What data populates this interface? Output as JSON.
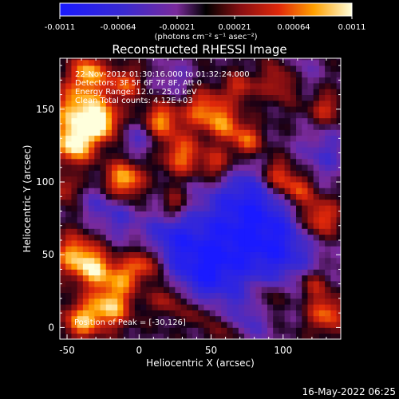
{
  "chart_data": {
    "type": "heatmap",
    "title": "Reconstructed RHESSI Image",
    "xlabel": "Heliocentric X (arcsec)",
    "ylabel": "Heliocentric Y (arcsec)",
    "xlim": [
      -55,
      140
    ],
    "ylim": [
      -8,
      185
    ],
    "x_ticks": [
      -50,
      0,
      50,
      100
    ],
    "y_ticks": [
      0,
      50,
      100,
      150
    ],
    "colorbar": {
      "ticks": [
        "-0.0011",
        "-0.00064",
        "-0.00021",
        "0.00021",
        "0.00064",
        "0.0011"
      ],
      "unit": "(photons cm⁻² s⁻¹ asec⁻²)",
      "range": [
        -0.0011,
        0.0011
      ]
    },
    "annotations": [
      "22-Nov-2012 01:30:16.000 to 01:32:24.000",
      "Detectors: 3F 5F 6F 7F 8F, Att 0",
      "Energy Range: 12.0 - 25.0 keV",
      "Clean     Total counts: 4.12E+03"
    ],
    "position_label": "Position of Peak = [-30,126]",
    "peak": [
      -30,
      126
    ]
  },
  "footer": {
    "date": "16-May-2022 06:25"
  }
}
